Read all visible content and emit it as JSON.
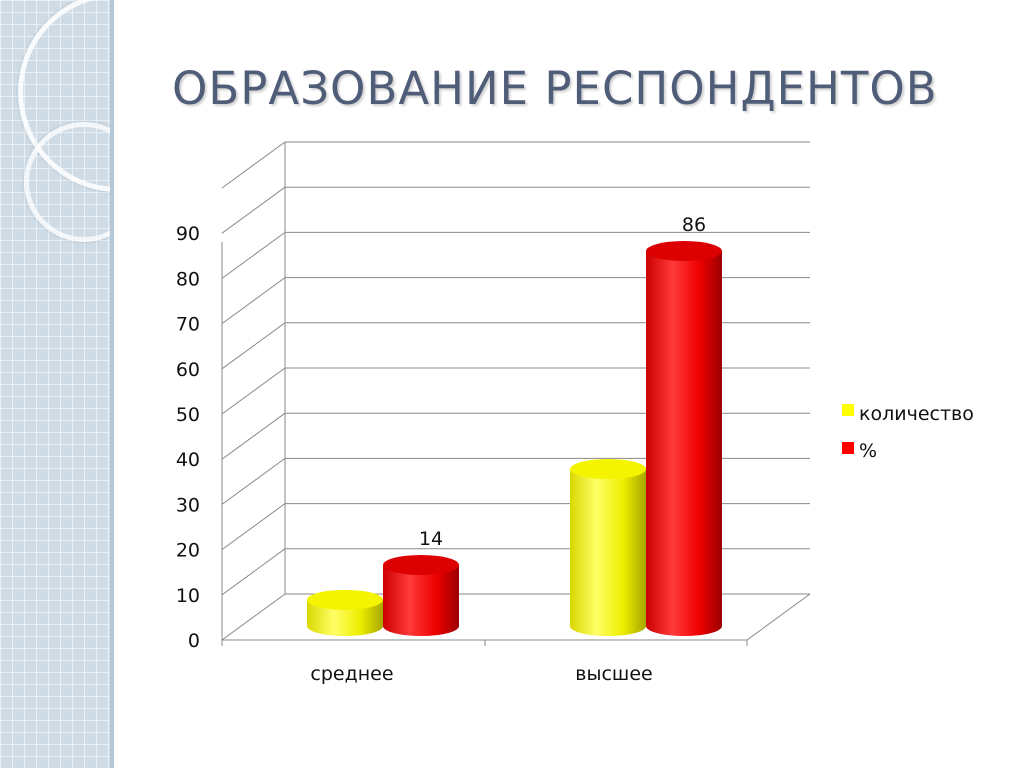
{
  "slide": {
    "title": "ОБРАЗОВАНИЕ РЕСПОНДЕНТОВ"
  },
  "chart_data": {
    "type": "bar",
    "style": "3d-cylinder",
    "categories": [
      "среднее",
      "высшее"
    ],
    "series": [
      {
        "name": "количество",
        "color": "#ffff00",
        "values": [
          6,
          36
        ],
        "data_labels": [
          null,
          null
        ]
      },
      {
        "name": "%",
        "color": "#ff0000",
        "values": [
          14,
          86
        ],
        "data_labels": [
          "14",
          "86"
        ]
      }
    ],
    "yticks": [
      "0",
      "10",
      "20",
      "30",
      "40",
      "50",
      "60",
      "70",
      "80",
      "90"
    ],
    "ylim": [
      0,
      100
    ],
    "grid": true,
    "legend": "right",
    "title": "",
    "xlabel": "",
    "ylabel": ""
  }
}
